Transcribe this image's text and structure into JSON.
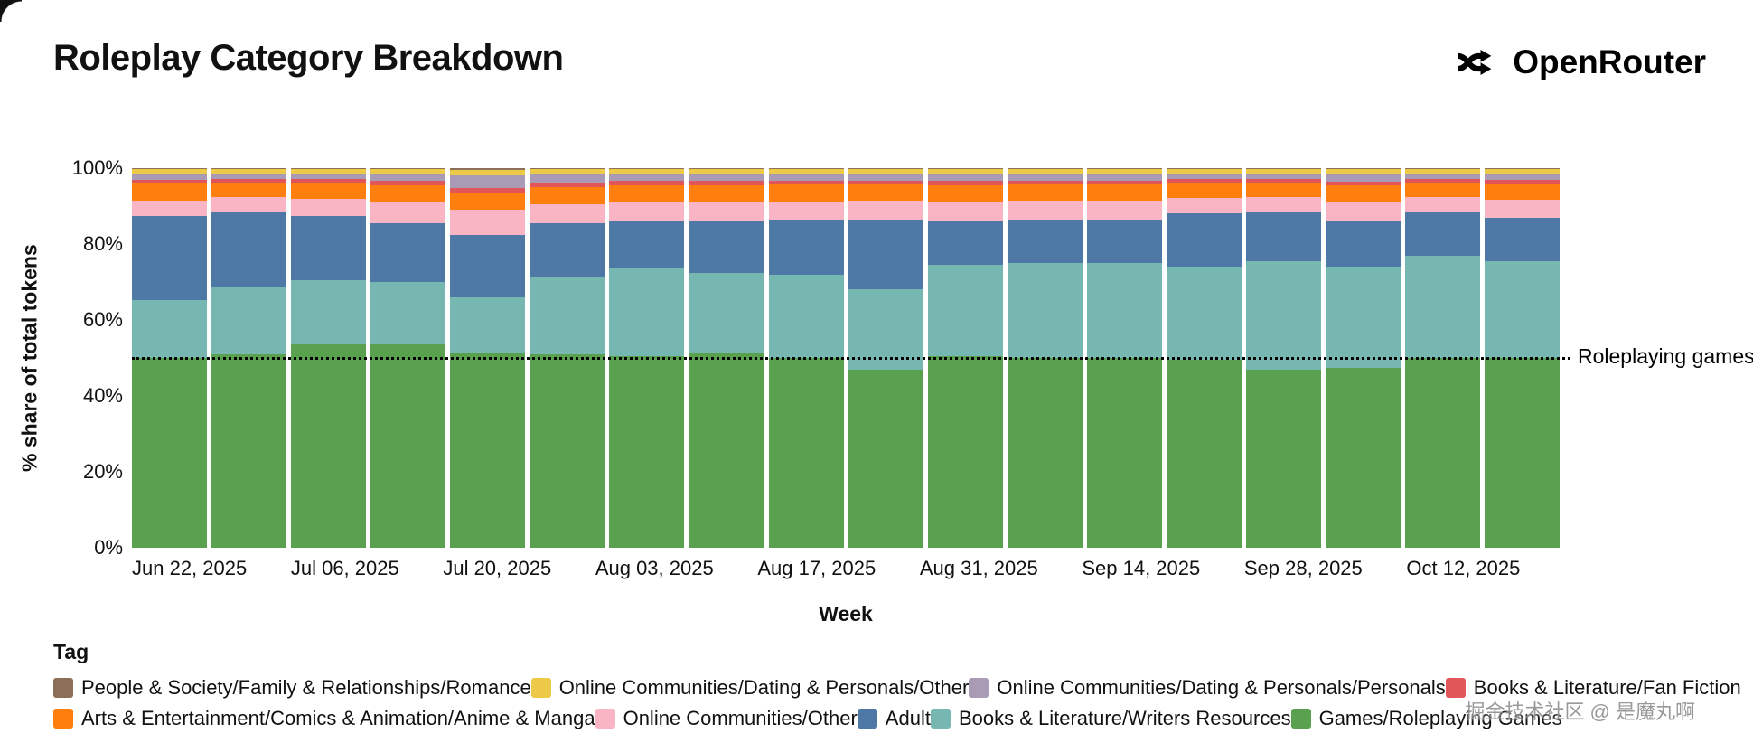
{
  "header": {
    "title": "Roleplay Category Breakdown",
    "brand": "OpenRouter"
  },
  "chart_data": {
    "type": "bar",
    "stacked": true,
    "percent": true,
    "xlabel": "Week",
    "ylabel": "% share of total tokens",
    "ylim": [
      0,
      100
    ],
    "y_ticks": [
      "0%",
      "20%",
      "40%",
      "60%",
      "80%",
      "100%"
    ],
    "x_tick_labels": [
      "Jun 22, 2025",
      "Jul 06, 2025",
      "Jul 20, 2025",
      "Aug 03, 2025",
      "Aug 17, 2025",
      "Aug 31, 2025",
      "Sep 14, 2025",
      "Sep 28, 2025",
      "Oct 12, 2025"
    ],
    "weeks": [
      "Jun 22, 2025",
      "Jun 29, 2025",
      "Jul 06, 2025",
      "Jul 13, 2025",
      "Jul 20, 2025",
      "Jul 27, 2025",
      "Aug 03, 2025",
      "Aug 10, 2025",
      "Aug 17, 2025",
      "Aug 24, 2025",
      "Aug 31, 2025",
      "Sep 07, 2025",
      "Sep 14, 2025",
      "Sep 21, 2025",
      "Sep 28, 2025",
      "Oct 05, 2025",
      "Oct 12, 2025",
      "Oct 19, 2025"
    ],
    "series": [
      {
        "name": "Games/Roleplaying Games",
        "color": "#59a14f",
        "values": [
          50,
          51,
          53.5,
          53.5,
          51.5,
          51,
          50.5,
          51.5,
          50,
          47,
          50.5,
          50,
          50,
          49.5,
          47,
          47.5,
          50,
          50
        ]
      },
      {
        "name": "Books & Literature/Writers Resources",
        "color": "#76b7b2",
        "values": [
          15.3,
          17.5,
          17,
          16.5,
          14.5,
          20.5,
          23,
          21,
          22,
          21,
          24,
          25,
          25,
          24.5,
          28.5,
          26.5,
          27,
          25.5
        ]
      },
      {
        "name": "Adult",
        "color": "#4e79a7",
        "values": [
          22,
          20,
          17,
          15.5,
          16.5,
          14,
          12.5,
          13.5,
          14.5,
          18.5,
          11.5,
          11.5,
          11.5,
          14,
          13,
          12,
          11.5,
          11.5
        ]
      },
      {
        "name": "Online Communities/Other",
        "color": "#f9b5c4",
        "values": [
          4.2,
          3.8,
          4.5,
          5.5,
          6.5,
          5.0,
          5.2,
          5.0,
          4.8,
          5.0,
          5.2,
          5.0,
          5.0,
          4.2,
          4.0,
          5.0,
          4.0,
          4.6
        ]
      },
      {
        "name": "Arts & Entertainment/Comics & Animation/Anime & Manga",
        "color": "#ff7f0e",
        "values": [
          4.5,
          4.0,
          4.2,
          4.5,
          4.5,
          4.6,
          4.4,
          4.5,
          4.4,
          4.2,
          4.3,
          4.2,
          4.2,
          4.0,
          3.8,
          4.4,
          3.8,
          4.2
        ]
      },
      {
        "name": "Books & Literature/Fan Fiction",
        "color": "#e15759",
        "values": [
          1.0,
          0.9,
          0.9,
          1.2,
          1.2,
          1.2,
          1.0,
          1.1,
          1.0,
          1.0,
          1.1,
          1.0,
          1.0,
          0.9,
          0.9,
          1.1,
          0.9,
          1.0
        ]
      },
      {
        "name": "Online Communities/Dating & Personals/Personals",
        "color": "#a99bb5",
        "values": [
          1.5,
          1.3,
          1.4,
          1.8,
          3.3,
          2.2,
          1.8,
          1.8,
          1.7,
          1.7,
          1.8,
          1.7,
          1.7,
          1.4,
          1.3,
          1.8,
          1.3,
          1.6
        ]
      },
      {
        "name": "Online Communities/Dating & Personals/Other",
        "color": "#edc948",
        "values": [
          1.2,
          1.2,
          1.2,
          1.2,
          1.6,
          1.2,
          1.3,
          1.3,
          1.3,
          1.3,
          1.3,
          1.3,
          1.3,
          1.2,
          1.2,
          1.4,
          1.2,
          1.3
        ]
      },
      {
        "name": "People & Society/Family & Relationships/Romance",
        "color": "#8d6e57",
        "values": [
          0.3,
          0.3,
          0.3,
          0.3,
          0.4,
          0.3,
          0.3,
          0.3,
          0.3,
          0.3,
          0.3,
          0.3,
          0.3,
          0.3,
          0.3,
          0.3,
          0.3,
          0.3
        ]
      }
    ],
    "annotation": {
      "label": "Roleplaying games",
      "y": 50,
      "style": "dotted"
    },
    "legend_position": "bottom",
    "grid": false
  },
  "legend": {
    "title": "Tag",
    "rows": [
      [
        {
          "label": "People & Society/Family & Relationships/Romance",
          "color": "#8d6e57"
        },
        {
          "label": "Online Communities/Dating & Personals/Other",
          "color": "#edc948"
        },
        {
          "label": "Online Communities/Dating & Personals/Personals",
          "color": "#a99bb5"
        },
        {
          "label": "Books & Literature/Fan Fiction",
          "color": "#e15759"
        }
      ],
      [
        {
          "label": "Arts & Entertainment/Comics & Animation/Anime & Manga",
          "color": "#ff7f0e"
        },
        {
          "label": "Online Communities/Other",
          "color": "#f9b5c4"
        },
        {
          "label": "Adult",
          "color": "#4e79a7"
        },
        {
          "label": "Books & Literature/Writers Resources",
          "color": "#76b7b2"
        },
        {
          "label": "Games/Roleplaying Games",
          "color": "#59a14f"
        }
      ]
    ]
  },
  "watermark": "掘金技术社区 @ 是魔丸啊"
}
